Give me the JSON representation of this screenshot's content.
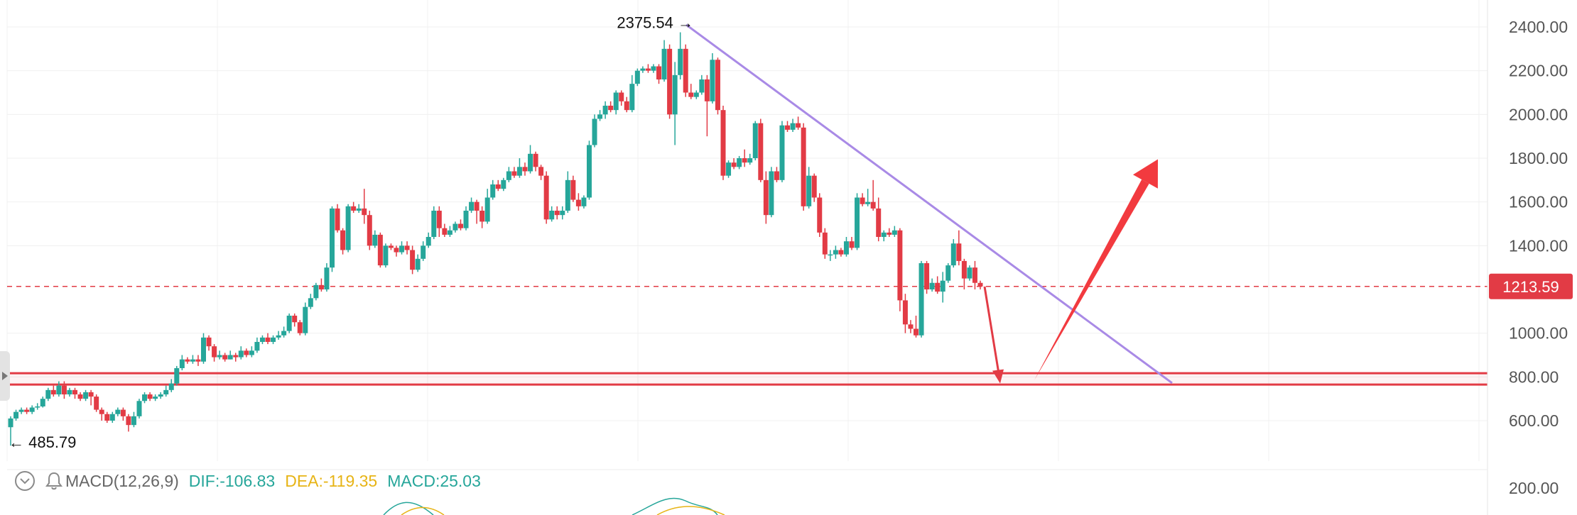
{
  "chart_data": {
    "type": "candlestick",
    "y_axis": {
      "ticks": [
        "2400.00",
        "2200.00",
        "2000.00",
        "1800.00",
        "1600.00",
        "1400.00",
        "1000.00",
        "800.00",
        "600.00"
      ],
      "tick_values": [
        2400,
        2200,
        2000,
        1800,
        1600,
        1400,
        1000,
        800,
        600
      ],
      "range": [
        370,
        2500
      ],
      "position": "right"
    },
    "current_price": {
      "label": "1213.59",
      "value": 1213.59,
      "color": "#e23b45"
    },
    "annotations": {
      "high": {
        "label": "2375.54 →",
        "value": 2375.54
      },
      "low": {
        "label": "← 485.79",
        "value": 485.79
      }
    },
    "support_zone": {
      "upper": 817,
      "lower": 765,
      "color": "#e23b45"
    },
    "trendline": {
      "from_value": 2410,
      "to_value": 772,
      "color": "#a98ae6"
    },
    "projection_arrows": [
      {
        "direction": "down",
        "from_value": 1213,
        "to_value": 770,
        "color": "#e23b45"
      },
      {
        "direction": "up",
        "from_value": 785,
        "to_value": 1795,
        "color": "#f23a3f"
      }
    ],
    "colors": {
      "up": "#26a69a",
      "down": "#e23b45"
    },
    "candles": [
      [
        570,
        610,
        485.79,
        620
      ],
      [
        610,
        640,
        600,
        650
      ],
      [
        640,
        650,
        630,
        660
      ],
      [
        650,
        640,
        630,
        660
      ],
      [
        640,
        660,
        630,
        670
      ],
      [
        660,
        665,
        650,
        680
      ],
      [
        665,
        700,
        660,
        710
      ],
      [
        700,
        740,
        690,
        750
      ],
      [
        740,
        720,
        710,
        760
      ],
      [
        720,
        760,
        710,
        780
      ],
      [
        760,
        720,
        700,
        780
      ],
      [
        720,
        740,
        710,
        750
      ],
      [
        740,
        720,
        700,
        750
      ],
      [
        720,
        700,
        690,
        730
      ],
      [
        700,
        730,
        690,
        740
      ],
      [
        730,
        710,
        670,
        740
      ],
      [
        710,
        650,
        640,
        720
      ],
      [
        650,
        630,
        600,
        660
      ],
      [
        630,
        600,
        590,
        640
      ],
      [
        600,
        630,
        590,
        640
      ],
      [
        630,
        650,
        620,
        660
      ],
      [
        650,
        620,
        600,
        660
      ],
      [
        620,
        580,
        550,
        630
      ],
      [
        580,
        620,
        570,
        640
      ],
      [
        620,
        690,
        610,
        700
      ],
      [
        690,
        720,
        680,
        730
      ],
      [
        720,
        700,
        690,
        730
      ],
      [
        700,
        710,
        690,
        720
      ],
      [
        710,
        720,
        700,
        730
      ],
      [
        720,
        740,
        710,
        760
      ],
      [
        740,
        770,
        730,
        790
      ],
      [
        770,
        840,
        760,
        850
      ],
      [
        840,
        880,
        830,
        900
      ],
      [
        880,
        870,
        860,
        890
      ],
      [
        870,
        880,
        860,
        900
      ],
      [
        880,
        870,
        850,
        900
      ],
      [
        870,
        980,
        860,
        1000
      ],
      [
        980,
        940,
        920,
        990
      ],
      [
        940,
        890,
        870,
        950
      ],
      [
        890,
        900,
        880,
        920
      ],
      [
        900,
        880,
        870,
        910
      ],
      [
        880,
        900,
        880,
        920
      ],
      [
        900,
        890,
        870,
        910
      ],
      [
        890,
        920,
        880,
        940
      ],
      [
        920,
        900,
        890,
        930
      ],
      [
        900,
        920,
        890,
        940
      ],
      [
        920,
        960,
        910,
        980
      ],
      [
        960,
        980,
        950,
        990
      ],
      [
        980,
        960,
        950,
        1000
      ],
      [
        960,
        980,
        950,
        990
      ],
      [
        980,
        990,
        970,
        1010
      ],
      [
        990,
        1010,
        980,
        1030
      ],
      [
        1010,
        1080,
        1000,
        1090
      ],
      [
        1080,
        1050,
        1030,
        1090
      ],
      [
        1050,
        1000,
        990,
        1060
      ],
      [
        1000,
        1120,
        990,
        1140
      ],
      [
        1120,
        1160,
        1110,
        1180
      ],
      [
        1160,
        1220,
        1150,
        1230
      ],
      [
        1220,
        1200,
        1190,
        1250
      ],
      [
        1200,
        1300,
        1190,
        1320
      ],
      [
        1300,
        1570,
        1280,
        1580
      ],
      [
        1570,
        1470,
        1460,
        1590
      ],
      [
        1470,
        1380,
        1360,
        1480
      ],
      [
        1380,
        1580,
        1370,
        1590
      ],
      [
        1580,
        1560,
        1550,
        1600
      ],
      [
        1560,
        1570,
        1550,
        1590
      ],
      [
        1570,
        1540,
        1500,
        1660
      ],
      [
        1540,
        1400,
        1380,
        1560
      ],
      [
        1400,
        1450,
        1390,
        1470
      ],
      [
        1450,
        1310,
        1300,
        1460
      ],
      [
        1310,
        1400,
        1300,
        1410
      ],
      [
        1400,
        1390,
        1380,
        1410
      ],
      [
        1390,
        1370,
        1350,
        1400
      ],
      [
        1370,
        1400,
        1360,
        1420
      ],
      [
        1400,
        1380,
        1360,
        1420
      ],
      [
        1380,
        1290,
        1270,
        1400
      ],
      [
        1290,
        1340,
        1280,
        1360
      ],
      [
        1340,
        1400,
        1330,
        1420
      ],
      [
        1400,
        1440,
        1390,
        1460
      ],
      [
        1440,
        1560,
        1430,
        1580
      ],
      [
        1560,
        1480,
        1440,
        1580
      ],
      [
        1480,
        1450,
        1440,
        1500
      ],
      [
        1450,
        1470,
        1440,
        1490
      ],
      [
        1470,
        1500,
        1460,
        1510
      ],
      [
        1500,
        1480,
        1470,
        1520
      ],
      [
        1480,
        1560,
        1470,
        1580
      ],
      [
        1560,
        1600,
        1550,
        1620
      ],
      [
        1600,
        1560,
        1500,
        1610
      ],
      [
        1560,
        1510,
        1480,
        1580
      ],
      [
        1510,
        1620,
        1500,
        1660
      ],
      [
        1620,
        1680,
        1610,
        1700
      ],
      [
        1680,
        1660,
        1650,
        1700
      ],
      [
        1660,
        1700,
        1650,
        1710
      ],
      [
        1700,
        1740,
        1690,
        1760
      ],
      [
        1740,
        1720,
        1710,
        1760
      ],
      [
        1720,
        1760,
        1710,
        1800
      ],
      [
        1760,
        1740,
        1720,
        1780
      ],
      [
        1740,
        1820,
        1730,
        1860
      ],
      [
        1820,
        1760,
        1740,
        1830
      ],
      [
        1760,
        1720,
        1700,
        1770
      ],
      [
        1720,
        1520,
        1500,
        1740
      ],
      [
        1520,
        1560,
        1510,
        1580
      ],
      [
        1560,
        1540,
        1520,
        1580
      ],
      [
        1540,
        1560,
        1520,
        1580
      ],
      [
        1560,
        1700,
        1550,
        1740
      ],
      [
        1700,
        1610,
        1600,
        1720
      ],
      [
        1610,
        1580,
        1560,
        1640
      ],
      [
        1580,
        1620,
        1570,
        1630
      ],
      [
        1620,
        1860,
        1610,
        1880
      ],
      [
        1860,
        1980,
        1850,
        2000
      ],
      [
        1980,
        2000,
        1970,
        2020
      ],
      [
        2000,
        2040,
        1980,
        2060
      ],
      [
        2040,
        2020,
        2010,
        2060
      ],
      [
        2020,
        2100,
        2000,
        2110
      ],
      [
        2100,
        2060,
        2040,
        2110
      ],
      [
        2060,
        2020,
        2010,
        2080
      ],
      [
        2020,
        2140,
        2010,
        2180
      ],
      [
        2140,
        2200,
        2130,
        2210
      ],
      [
        2200,
        2210,
        2190,
        2220
      ],
      [
        2210,
        2200,
        2190,
        2230
      ],
      [
        2200,
        2220,
        2190,
        2230
      ],
      [
        2220,
        2160,
        2140,
        2230
      ],
      [
        2160,
        2300,
        2150,
        2340
      ],
      [
        2300,
        2000,
        1980,
        2320
      ],
      [
        2000,
        2180,
        1860,
        2240
      ],
      [
        2180,
        2300,
        2160,
        2375.54
      ],
      [
        2300,
        2100,
        2080,
        2320
      ],
      [
        2100,
        2080,
        2070,
        2140
      ],
      [
        2080,
        2100,
        2070,
        2110
      ],
      [
        2100,
        2160,
        2090,
        2180
      ],
      [
        2160,
        2060,
        1900,
        2180
      ],
      [
        2060,
        2250,
        2050,
        2280
      ],
      [
        2250,
        2020,
        2000,
        2260
      ],
      [
        2020,
        1720,
        1700,
        2040
      ],
      [
        1720,
        1780,
        1710,
        1790
      ],
      [
        1780,
        1760,
        1750,
        1800
      ],
      [
        1760,
        1800,
        1750,
        1810
      ],
      [
        1800,
        1780,
        1760,
        1840
      ],
      [
        1780,
        1800,
        1770,
        1820
      ],
      [
        1800,
        1960,
        1790,
        1970
      ],
      [
        1960,
        1700,
        1690,
        1980
      ],
      [
        1700,
        1540,
        1500,
        1740
      ],
      [
        1540,
        1740,
        1530,
        1760
      ],
      [
        1740,
        1700,
        1690,
        1760
      ],
      [
        1700,
        1950,
        1690,
        1970
      ],
      [
        1950,
        1930,
        1920,
        1970
      ],
      [
        1930,
        1960,
        1920,
        1980
      ],
      [
        1960,
        1940,
        1930,
        1990
      ],
      [
        1940,
        1580,
        1560,
        1960
      ],
      [
        1580,
        1720,
        1570,
        1760
      ],
      [
        1720,
        1620,
        1600,
        1730
      ],
      [
        1620,
        1460,
        1440,
        1640
      ],
      [
        1460,
        1360,
        1340,
        1480
      ],
      [
        1360,
        1360,
        1330,
        1380
      ],
      [
        1360,
        1380,
        1340,
        1400
      ],
      [
        1380,
        1360,
        1350,
        1390
      ],
      [
        1360,
        1420,
        1350,
        1440
      ],
      [
        1420,
        1390,
        1380,
        1440
      ],
      [
        1390,
        1620,
        1380,
        1640
      ],
      [
        1620,
        1590,
        1580,
        1640
      ],
      [
        1590,
        1600,
        1580,
        1660
      ],
      [
        1600,
        1570,
        1560,
        1700
      ],
      [
        1570,
        1440,
        1420,
        1620
      ],
      [
        1440,
        1460,
        1420,
        1470
      ],
      [
        1460,
        1450,
        1440,
        1480
      ],
      [
        1450,
        1470,
        1440,
        1490
      ],
      [
        1470,
        1150,
        1100,
        1480
      ],
      [
        1150,
        1040,
        1000,
        1180
      ],
      [
        1040,
        1020,
        1000,
        1060
      ],
      [
        1020,
        990,
        980,
        1080
      ],
      [
        990,
        1320,
        980,
        1330
      ],
      [
        1320,
        1200,
        1180,
        1330
      ],
      [
        1200,
        1230,
        1190,
        1250
      ],
      [
        1230,
        1190,
        1180,
        1260
      ],
      [
        1190,
        1240,
        1140,
        1280
      ],
      [
        1240,
        1310,
        1230,
        1320
      ],
      [
        1310,
        1410,
        1300,
        1430
      ],
      [
        1410,
        1330,
        1310,
        1470
      ],
      [
        1330,
        1250,
        1200,
        1340
      ],
      [
        1250,
        1300,
        1240,
        1310
      ],
      [
        1300,
        1230,
        1200,
        1330
      ],
      [
        1230,
        1213.59,
        1200,
        1240
      ]
    ]
  },
  "indicator": {
    "name": "MACD(12,26,9)",
    "dif": "DIF:-106.83",
    "dea": "DEA:-119.35",
    "macd": "MACD:25.03",
    "dif_color": "#26a69a",
    "dea_color": "#e7b416",
    "macd_color": "#26a69a",
    "axis_tick": "200.00"
  },
  "icons": {
    "collapse": "chevron-down-circle-icon",
    "alert": "bell-icon",
    "handle": "play-triangle-icon"
  }
}
